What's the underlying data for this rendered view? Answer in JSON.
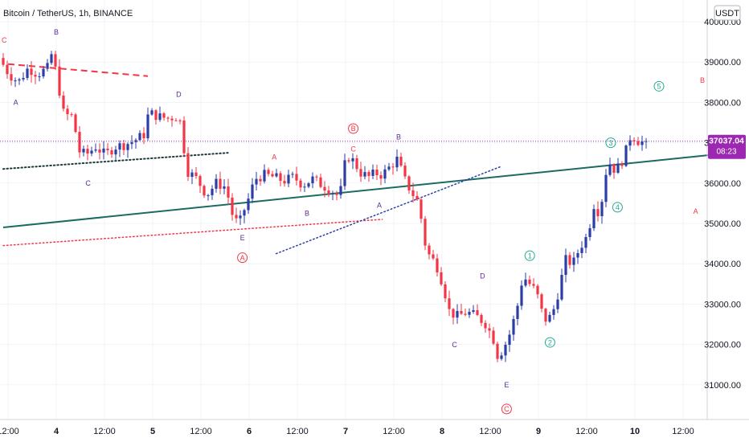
{
  "chart_data": {
    "type": "candlestick",
    "title": "Bitcoin / TetherUS, 1h, BINANCE",
    "currency": "USDT",
    "current_price": "37037.04",
    "countdown": "08:23",
    "ylim": [
      30200,
      40400
    ],
    "y_ticks": [
      {
        "value": 31000,
        "label": "31000.00"
      },
      {
        "value": 32000,
        "label": "32000.00"
      },
      {
        "value": 33000,
        "label": "33000.00"
      },
      {
        "value": 34000,
        "label": "34000.00"
      },
      {
        "value": 35000,
        "label": "35000.00"
      },
      {
        "value": 36000,
        "label": "36000.00"
      },
      {
        "value": 37000,
        "label": "37000.00"
      },
      {
        "value": 38000,
        "label": "38000.00"
      },
      {
        "value": 39000,
        "label": "39000.00"
      },
      {
        "value": 40000,
        "label": "40000.00"
      }
    ],
    "x_ticks": [
      {
        "label": "12:00",
        "day": 3.5,
        "bold": false
      },
      {
        "label": "4",
        "day": 4.0,
        "bold": true
      },
      {
        "label": "12:00",
        "day": 4.5,
        "bold": false
      },
      {
        "label": "5",
        "day": 5.0,
        "bold": true
      },
      {
        "label": "12:00",
        "day": 5.5,
        "bold": false
      },
      {
        "label": "6",
        "day": 6.0,
        "bold": true
      },
      {
        "label": "12:00",
        "day": 6.5,
        "bold": false
      },
      {
        "label": "7",
        "day": 7.0,
        "bold": true
      },
      {
        "label": "12:00",
        "day": 7.5,
        "bold": false
      },
      {
        "label": "8",
        "day": 8.0,
        "bold": true
      },
      {
        "label": "12:00",
        "day": 8.5,
        "bold": false
      },
      {
        "label": "9",
        "day": 9.0,
        "bold": true
      },
      {
        "label": "12:00",
        "day": 9.5,
        "bold": false
      },
      {
        "label": "10",
        "day": 10.0,
        "bold": true
      },
      {
        "label": "12:00",
        "day": 10.5,
        "bold": false
      }
    ],
    "price_path": [
      [
        3.45,
        39100
      ],
      [
        3.55,
        38700
      ],
      [
        3.65,
        38500
      ],
      [
        3.75,
        38850
      ],
      [
        3.85,
        38700
      ],
      [
        3.95,
        38850
      ],
      [
        4.0,
        39250
      ],
      [
        4.05,
        38600
      ],
      [
        4.12,
        37700
      ],
      [
        4.22,
        37650
      ],
      [
        4.27,
        36800
      ],
      [
        4.35,
        36700
      ],
      [
        4.45,
        36900
      ],
      [
        4.55,
        36700
      ],
      [
        4.65,
        36900
      ],
      [
        4.75,
        36950
      ],
      [
        4.85,
        37050
      ],
      [
        4.95,
        37200
      ],
      [
        5.0,
        37750
      ],
      [
        5.1,
        37650
      ],
      [
        5.2,
        37600
      ],
      [
        5.28,
        37650
      ],
      [
        5.32,
        37600
      ],
      [
        5.4,
        36300
      ],
      [
        5.5,
        36100
      ],
      [
        5.6,
        35700
      ],
      [
        5.7,
        36000
      ],
      [
        5.8,
        35900
      ],
      [
        5.88,
        35100
      ],
      [
        5.94,
        35000
      ],
      [
        6.0,
        35400
      ],
      [
        6.05,
        35700
      ],
      [
        6.1,
        36100
      ],
      [
        6.2,
        36200
      ],
      [
        6.3,
        36150
      ],
      [
        6.4,
        36050
      ],
      [
        6.5,
        36150
      ],
      [
        6.6,
        35950
      ],
      [
        6.7,
        36100
      ],
      [
        6.8,
        35950
      ],
      [
        6.9,
        35800
      ],
      [
        6.98,
        35650
      ],
      [
        7.05,
        36700
      ],
      [
        7.12,
        36550
      ],
      [
        7.2,
        36250
      ],
      [
        7.28,
        36150
      ],
      [
        7.35,
        36250
      ],
      [
        7.42,
        36200
      ],
      [
        7.5,
        36400
      ],
      [
        7.58,
        36600
      ],
      [
        7.65,
        36100
      ],
      [
        7.72,
        35800
      ],
      [
        7.8,
        35500
      ],
      [
        7.88,
        34300
      ],
      [
        7.98,
        34000
      ],
      [
        8.05,
        33500
      ],
      [
        8.12,
        32800
      ],
      [
        8.2,
        32700
      ],
      [
        8.3,
        32800
      ],
      [
        8.4,
        32700
      ],
      [
        8.5,
        32500
      ],
      [
        8.58,
        32100
      ],
      [
        8.62,
        31700
      ],
      [
        8.68,
        31900
      ],
      [
        8.75,
        32300
      ],
      [
        8.82,
        32900
      ],
      [
        8.88,
        33700
      ],
      [
        8.95,
        33500
      ],
      [
        9.02,
        33300
      ],
      [
        9.1,
        32600
      ],
      [
        9.18,
        32700
      ],
      [
        9.26,
        33400
      ],
      [
        9.32,
        34100
      ],
      [
        9.4,
        34000
      ],
      [
        9.47,
        34400
      ],
      [
        9.55,
        34700
      ],
      [
        9.62,
        35500
      ],
      [
        9.68,
        35200
      ],
      [
        9.73,
        36200
      ],
      [
        9.78,
        36500
      ],
      [
        9.84,
        36300
      ],
      [
        9.9,
        36500
      ],
      [
        9.95,
        36800
      ],
      [
        10.0,
        37200
      ],
      [
        10.05,
        37100
      ],
      [
        10.1,
        37000
      ],
      [
        10.15,
        37040
      ]
    ],
    "wave_labels": [
      {
        "text": "C",
        "day": 3.46,
        "price": 39550,
        "color": "#f23645",
        "circle": false
      },
      {
        "text": "B",
        "day": 4.0,
        "price": 39750,
        "color": "#5b2c8f",
        "circle": false
      },
      {
        "text": "A",
        "day": 3.58,
        "price": 38000,
        "color": "#5b2c8f",
        "circle": false
      },
      {
        "text": "C",
        "day": 4.33,
        "price": 36000,
        "color": "#5b2c8f",
        "circle": false
      },
      {
        "text": "D",
        "day": 5.27,
        "price": 38200,
        "color": "#5b2c8f",
        "circle": false
      },
      {
        "text": "E",
        "day": 5.93,
        "price": 34650,
        "color": "#5b2c8f",
        "circle": false
      },
      {
        "text": "A",
        "day": 5.93,
        "price": 34150,
        "color": "#f23645",
        "circle": true
      },
      {
        "text": "A",
        "day": 6.26,
        "price": 36650,
        "color": "#f23645",
        "circle": false
      },
      {
        "text": "B",
        "day": 6.6,
        "price": 35250,
        "color": "#5b2c8f",
        "circle": false
      },
      {
        "text": "B",
        "day": 7.08,
        "price": 37350,
        "color": "#f23645",
        "circle": true
      },
      {
        "text": "C",
        "day": 7.08,
        "price": 36850,
        "color": "#f23645",
        "circle": false
      },
      {
        "text": "B",
        "day": 7.55,
        "price": 37150,
        "color": "#5b2c8f",
        "circle": false
      },
      {
        "text": "A",
        "day": 7.35,
        "price": 35450,
        "color": "#5b2c8f",
        "circle": false
      },
      {
        "text": "D",
        "day": 8.42,
        "price": 33700,
        "color": "#5b2c8f",
        "circle": false
      },
      {
        "text": "C",
        "day": 8.13,
        "price": 32000,
        "color": "#5b2c8f",
        "circle": false
      },
      {
        "text": "E",
        "day": 8.67,
        "price": 31000,
        "color": "#5b2c8f",
        "circle": false
      },
      {
        "text": "C",
        "day": 8.67,
        "price": 30400,
        "color": "#f23645",
        "circle": true
      },
      {
        "text": "1",
        "day": 8.91,
        "price": 34200,
        "color": "#22ab94",
        "circle": true
      },
      {
        "text": "2",
        "day": 9.12,
        "price": 32050,
        "color": "#22ab94",
        "circle": true
      },
      {
        "text": "3",
        "day": 9.75,
        "price": 37000,
        "color": "#22ab94",
        "circle": true
      },
      {
        "text": "4",
        "day": 9.82,
        "price": 35400,
        "color": "#22ab94",
        "circle": true
      },
      {
        "text": "5",
        "day": 10.25,
        "price": 38400,
        "color": "#22ab94",
        "circle": true
      },
      {
        "text": "B",
        "day": 10.7,
        "price": 38550,
        "color": "#f23645",
        "circle": false
      },
      {
        "text": "A",
        "day": 10.63,
        "price": 35300,
        "color": "#f23645",
        "circle": false
      }
    ],
    "trend_lines": [
      {
        "points": [
          [
            3.45,
            34900
          ],
          [
            10.8,
            36700
          ]
        ],
        "color": "#1b6b63",
        "style": "solid",
        "width": 2
      },
      {
        "points": [
          [
            3.5,
            38950
          ],
          [
            4.95,
            38650
          ]
        ],
        "color": "#f23645",
        "style": "dashed",
        "width": 2
      },
      {
        "points": [
          [
            3.45,
            36350
          ],
          [
            5.78,
            36750
          ]
        ],
        "color": "#1b3a3a",
        "style": "dotted",
        "width": 2
      },
      {
        "points": [
          [
            3.45,
            34450
          ],
          [
            7.38,
            35100
          ]
        ],
        "color": "#f23645",
        "style": "dotted",
        "width": 1.5
      },
      {
        "points": [
          [
            6.28,
            34250
          ],
          [
            8.6,
            36400
          ]
        ],
        "color": "#2a3ea6",
        "style": "dotted",
        "width": 1.5
      }
    ],
    "price_line": {
      "value": 37037,
      "color": "#9c27b0"
    },
    "colors": {
      "up": "#2a3ea6",
      "down": "#f23645",
      "axis_text": "#131722",
      "grid": "#f0f3fa",
      "label_bg": "#9c27b0"
    }
  }
}
